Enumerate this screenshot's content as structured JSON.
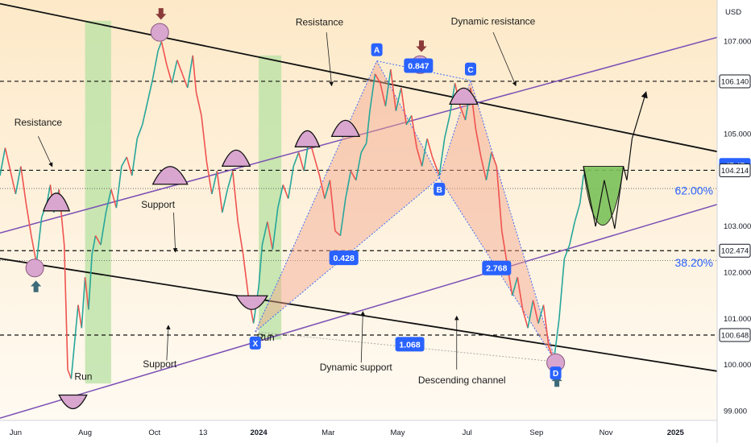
{
  "chart_data": {
    "type": "line",
    "title": "",
    "price_axis": {
      "unit": "USD",
      "ticks": [
        {
          "label": "107.000",
          "value": 107.0
        },
        {
          "label": "105.000",
          "value": 105.0
        },
        {
          "label": "103.000",
          "value": 103.0
        },
        {
          "label": "102.000",
          "value": 102.0
        },
        {
          "label": "101.000",
          "value": 101.0
        },
        {
          "label": "100.000",
          "value": 100.0
        },
        {
          "label": "99.000",
          "value": 99.0
        }
      ],
      "range": [
        98.8,
        107.9
      ]
    },
    "time_axis": {
      "ticks": [
        {
          "label": "Jun",
          "t": 0
        },
        {
          "label": "Aug",
          "t": 2
        },
        {
          "label": "Oct",
          "t": 4
        },
        {
          "label": "13",
          "t": 5.4
        },
        {
          "label": "2024",
          "t": 7
        },
        {
          "label": "Mar",
          "t": 9
        },
        {
          "label": "May",
          "t": 11
        },
        {
          "label": "Jul",
          "t": 13
        },
        {
          "label": "Sep",
          "t": 15
        },
        {
          "label": "Nov",
          "t": 17
        },
        {
          "label": "2025",
          "t": 19
        }
      ],
      "range": [
        -0.45,
        20.2
      ]
    },
    "price_tags": [
      {
        "label": "106.140",
        "value": 106.14,
        "style": "white"
      },
      {
        "label": "47:47",
        "value": 104.33,
        "style": "blue"
      },
      {
        "label": "104.214",
        "value": 104.214,
        "style": "white"
      },
      {
        "label": "102.474",
        "value": 102.474,
        "style": "white"
      },
      {
        "label": "100.648",
        "value": 100.648,
        "style": "white"
      }
    ],
    "fib_levels": [
      {
        "label": "62.00%",
        "value": 103.78
      },
      {
        "label": "38.20%",
        "value": 102.22
      }
    ],
    "horizontal_levels": [
      106.14,
      104.214,
      102.474,
      100.648
    ],
    "harmonic_points": [
      {
        "name": "X",
        "t": 6.9,
        "price": 100.72
      },
      {
        "name": "A",
        "t": 10.4,
        "price": 106.58
      },
      {
        "name": "B",
        "t": 12.2,
        "price": 104.05
      },
      {
        "name": "C",
        "t": 13.1,
        "price": 106.16
      },
      {
        "name": "D",
        "t": 15.55,
        "price": 100.07
      }
    ],
    "ratios": [
      {
        "label": "0.428",
        "t": 9.45,
        "price": 102.32
      },
      {
        "label": "0.847",
        "t": 11.6,
        "price": 106.48
      },
      {
        "label": "2.768",
        "t": 13.85,
        "price": 102.1
      },
      {
        "label": "1.068",
        "t": 11.35,
        "price": 100.45
      }
    ],
    "annotations": [
      {
        "text": "Resistance",
        "t": 8.75,
        "price": 107.35
      },
      {
        "text": "Dynamic resistance",
        "t": 13.75,
        "price": 107.37
      },
      {
        "text": "Resistance",
        "t": 0.65,
        "price": 105.18
      },
      {
        "text": "Support",
        "t": 4.1,
        "price": 103.4
      },
      {
        "text": "Support",
        "t": 4.15,
        "price": 99.95
      },
      {
        "text": "Dynamic support",
        "t": 9.8,
        "price": 99.88
      },
      {
        "text": "Descending channel",
        "t": 12.85,
        "price": 99.6
      },
      {
        "text": "Run",
        "t": 7.2,
        "price": 100.53
      },
      {
        "text": "Run",
        "t": 1.95,
        "price": 99.68
      }
    ],
    "series": [
      {
        "values": [
          [
            -0.45,
            104.1
          ],
          [
            -0.3,
            104.7
          ],
          [
            -0.15,
            104.2
          ],
          [
            0.0,
            103.7
          ],
          [
            0.15,
            104.3
          ],
          [
            0.3,
            103.5
          ],
          [
            0.45,
            102.8
          ],
          [
            0.6,
            102.2
          ],
          [
            0.75,
            103.2
          ],
          [
            0.9,
            103.5
          ],
          [
            1.0,
            103.9
          ],
          [
            1.1,
            103.3
          ],
          [
            1.25,
            103.8
          ],
          [
            1.4,
            102.6
          ],
          [
            1.5,
            99.9
          ],
          [
            1.6,
            99.7
          ],
          [
            1.7,
            100.5
          ],
          [
            1.8,
            101.3
          ],
          [
            1.9,
            100.8
          ],
          [
            2.0,
            101.9
          ],
          [
            2.1,
            101.2
          ],
          [
            2.2,
            102.4
          ],
          [
            2.3,
            102.8
          ],
          [
            2.45,
            102.6
          ],
          [
            2.6,
            103.3
          ],
          [
            2.75,
            103.8
          ],
          [
            2.9,
            103.4
          ],
          [
            3.05,
            104.3
          ],
          [
            3.2,
            104.5
          ],
          [
            3.35,
            104.1
          ],
          [
            3.5,
            104.9
          ],
          [
            3.65,
            105.2
          ],
          [
            3.8,
            105.7
          ],
          [
            3.95,
            106.2
          ],
          [
            4.1,
            106.8
          ],
          [
            4.2,
            107.0
          ],
          [
            4.35,
            106.5
          ],
          [
            4.5,
            106.1
          ],
          [
            4.65,
            106.6
          ],
          [
            4.8,
            106.3
          ],
          [
            4.95,
            106.0
          ],
          [
            5.1,
            106.7
          ],
          [
            5.2,
            105.9
          ],
          [
            5.35,
            105.4
          ],
          [
            5.5,
            104.4
          ],
          [
            5.65,
            103.7
          ],
          [
            5.8,
            104.2
          ],
          [
            5.95,
            103.3
          ],
          [
            6.1,
            103.8
          ],
          [
            6.25,
            104.2
          ],
          [
            6.4,
            103.1
          ],
          [
            6.55,
            102.4
          ],
          [
            6.7,
            101.5
          ],
          [
            6.85,
            100.9
          ],
          [
            7.0,
            101.7
          ],
          [
            7.1,
            102.6
          ],
          [
            7.25,
            103.1
          ],
          [
            7.4,
            102.5
          ],
          [
            7.55,
            103.4
          ],
          [
            7.7,
            103.9
          ],
          [
            7.85,
            103.6
          ],
          [
            8.0,
            104.3
          ],
          [
            8.15,
            104.6
          ],
          [
            8.3,
            104.2
          ],
          [
            8.45,
            104.9
          ],
          [
            8.6,
            104.5
          ],
          [
            8.75,
            104.1
          ],
          [
            8.9,
            103.6
          ],
          [
            9.05,
            104.0
          ],
          [
            9.2,
            102.9
          ],
          [
            9.35,
            102.8
          ],
          [
            9.5,
            103.6
          ],
          [
            9.65,
            104.2
          ],
          [
            9.8,
            104.0
          ],
          [
            9.95,
            104.6
          ],
          [
            10.1,
            104.8
          ],
          [
            10.2,
            105.5
          ],
          [
            10.35,
            106.3
          ],
          [
            10.5,
            106.1
          ],
          [
            10.65,
            105.6
          ],
          [
            10.8,
            106.4
          ],
          [
            10.95,
            105.5
          ],
          [
            11.1,
            106.0
          ],
          [
            11.25,
            105.2
          ],
          [
            11.4,
            105.4
          ],
          [
            11.55,
            104.7
          ],
          [
            11.7,
            104.3
          ],
          [
            11.85,
            104.9
          ],
          [
            12.0,
            104.5
          ],
          [
            12.2,
            104.1
          ],
          [
            12.35,
            104.9
          ],
          [
            12.5,
            105.4
          ],
          [
            12.65,
            106.1
          ],
          [
            12.8,
            105.6
          ],
          [
            12.95,
            105.3
          ],
          [
            13.1,
            106.0
          ],
          [
            13.25,
            105.1
          ],
          [
            13.4,
            104.5
          ],
          [
            13.55,
            104.0
          ],
          [
            13.7,
            104.6
          ],
          [
            13.85,
            104.3
          ],
          [
            14.0,
            102.9
          ],
          [
            14.15,
            102.2
          ],
          [
            14.3,
            101.5
          ],
          [
            14.45,
            101.9
          ],
          [
            14.6,
            101.2
          ],
          [
            14.75,
            100.8
          ],
          [
            14.9,
            101.4
          ],
          [
            15.05,
            100.9
          ],
          [
            15.2,
            101.3
          ],
          [
            15.35,
            100.4
          ],
          [
            15.5,
            100.1
          ],
          [
            15.65,
            101.0
          ],
          [
            15.8,
            102.3
          ],
          [
            15.95,
            102.6
          ],
          [
            16.1,
            103.1
          ],
          [
            16.25,
            103.5
          ],
          [
            16.35,
            104.1
          ],
          [
            16.45,
            104.2
          ]
        ]
      }
    ]
  }
}
